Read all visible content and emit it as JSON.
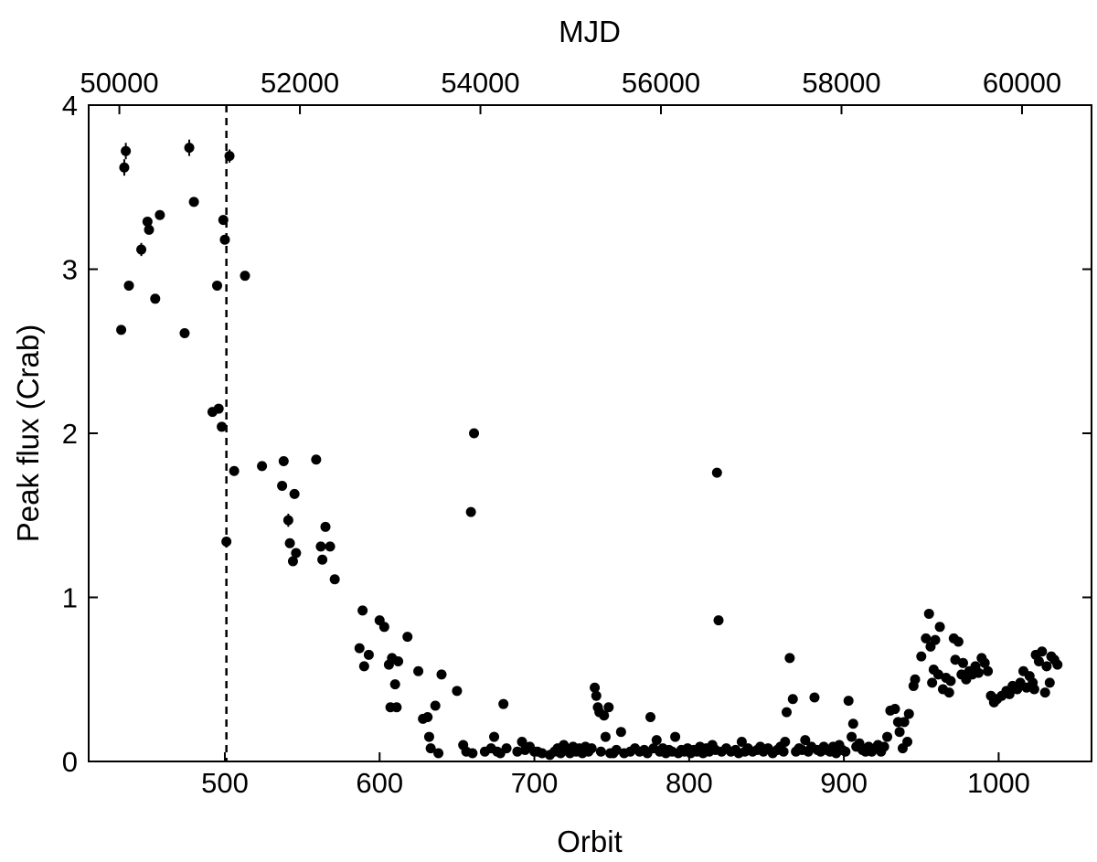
{
  "chart_data": {
    "type": "scatter",
    "title": "",
    "xlabel": "Orbit",
    "ylabel": "Peak flux (Crab)",
    "x2label": "MJD",
    "xlim": [
      412,
      1060
    ],
    "ylim": [
      0,
      4
    ],
    "x2lim": [
      49660,
      60770
    ],
    "xticks": [
      500,
      600,
      700,
      800,
      900,
      1000
    ],
    "yticks": [
      0,
      1,
      2,
      3,
      4
    ],
    "x2ticks": [
      50000,
      52000,
      54000,
      56000,
      58000,
      60000
    ],
    "reference_line": {
      "axis": "x",
      "value": 501,
      "style": "dashed"
    },
    "grid": false,
    "legend": "none",
    "series": [
      {
        "points": [
          [
            433,
            2.63
          ],
          [
            435,
            3.62
          ],
          [
            436,
            3.72
          ],
          [
            438,
            2.9
          ],
          [
            446,
            3.12
          ],
          [
            450,
            3.29
          ],
          [
            451,
            3.24
          ],
          [
            455,
            2.82
          ],
          [
            458,
            3.33
          ],
          [
            474,
            2.61
          ],
          [
            477,
            3.74
          ],
          [
            480,
            3.41
          ],
          [
            492,
            2.13
          ],
          [
            495,
            2.9
          ],
          [
            496,
            2.15
          ],
          [
            498,
            2.04
          ],
          [
            499,
            3.3
          ],
          [
            500,
            3.18
          ],
          [
            501,
            1.34
          ],
          [
            503,
            3.69
          ],
          [
            506,
            1.77
          ],
          [
            513,
            2.96
          ],
          [
            524,
            1.8
          ],
          [
            537,
            1.68
          ],
          [
            538,
            1.83
          ],
          [
            541,
            1.47
          ],
          [
            542,
            1.33
          ],
          [
            544,
            1.22
          ],
          [
            545,
            1.63
          ],
          [
            546,
            1.27
          ],
          [
            559,
            1.84
          ],
          [
            562,
            1.31
          ],
          [
            563,
            1.23
          ],
          [
            565,
            1.43
          ],
          [
            568,
            1.31
          ],
          [
            571,
            1.11
          ],
          [
            587,
            0.69
          ],
          [
            589,
            0.92
          ],
          [
            590,
            0.58
          ],
          [
            593,
            0.65
          ],
          [
            600,
            0.86
          ],
          [
            603,
            0.82
          ],
          [
            606,
            0.59
          ],
          [
            607,
            0.33
          ],
          [
            608,
            0.63
          ],
          [
            610,
            0.47
          ],
          [
            611,
            0.33
          ],
          [
            612,
            0.61
          ],
          [
            618,
            0.76
          ],
          [
            625,
            0.55
          ],
          [
            628,
            0.26
          ],
          [
            631,
            0.27
          ],
          [
            632,
            0.15
          ],
          [
            633,
            0.08
          ],
          [
            636,
            0.34
          ],
          [
            638,
            0.05
          ],
          [
            640,
            0.53
          ],
          [
            650,
            0.43
          ],
          [
            654,
            0.1
          ],
          [
            656,
            0.06
          ],
          [
            659,
            1.52
          ],
          [
            660,
            0.05
          ],
          [
            661,
            2.0
          ],
          [
            668,
            0.06
          ],
          [
            672,
            0.08
          ],
          [
            674,
            0.15
          ],
          [
            676,
            0.06
          ],
          [
            678,
            0.05
          ],
          [
            680,
            0.35
          ],
          [
            682,
            0.08
          ],
          [
            689,
            0.06
          ],
          [
            692,
            0.12
          ],
          [
            694,
            0.07
          ],
          [
            697,
            0.09
          ],
          [
            700,
            0.06
          ],
          [
            702,
            0.06
          ],
          [
            705,
            0.05
          ],
          [
            710,
            0.04
          ],
          [
            713,
            0.06
          ],
          [
            715,
            0.08
          ],
          [
            717,
            0.05
          ],
          [
            719,
            0.1
          ],
          [
            721,
            0.07
          ],
          [
            723,
            0.05
          ],
          [
            725,
            0.09
          ],
          [
            727,
            0.06
          ],
          [
            729,
            0.08
          ],
          [
            731,
            0.05
          ],
          [
            733,
            0.09
          ],
          [
            735,
            0.06
          ],
          [
            737,
            0.08
          ],
          [
            739,
            0.45
          ],
          [
            740,
            0.4
          ],
          [
            741,
            0.33
          ],
          [
            742,
            0.3
          ],
          [
            743,
            0.06
          ],
          [
            745,
            0.28
          ],
          [
            746,
            0.15
          ],
          [
            748,
            0.33
          ],
          [
            749,
            0.05
          ],
          [
            751,
            0.05
          ],
          [
            753,
            0.07
          ],
          [
            756,
            0.18
          ],
          [
            758,
            0.05
          ],
          [
            762,
            0.06
          ],
          [
            765,
            0.08
          ],
          [
            768,
            0.06
          ],
          [
            771,
            0.07
          ],
          [
            773,
            0.05
          ],
          [
            775,
            0.27
          ],
          [
            777,
            0.08
          ],
          [
            779,
            0.13
          ],
          [
            781,
            0.06
          ],
          [
            783,
            0.08
          ],
          [
            785,
            0.05
          ],
          [
            787,
            0.07
          ],
          [
            789,
            0.06
          ],
          [
            791,
            0.15
          ],
          [
            793,
            0.05
          ],
          [
            795,
            0.07
          ],
          [
            797,
            0.06
          ],
          [
            799,
            0.08
          ],
          [
            801,
            0.05
          ],
          [
            803,
            0.07
          ],
          [
            805,
            0.06
          ],
          [
            807,
            0.09
          ],
          [
            809,
            0.05
          ],
          [
            811,
            0.08
          ],
          [
            813,
            0.06
          ],
          [
            815,
            0.1
          ],
          [
            817,
            0.07
          ],
          [
            818,
            1.76
          ],
          [
            819,
            0.86
          ],
          [
            821,
            0.06
          ],
          [
            824,
            0.08
          ],
          [
            827,
            0.06
          ],
          [
            830,
            0.07
          ],
          [
            832,
            0.05
          ],
          [
            834,
            0.12
          ],
          [
            836,
            0.06
          ],
          [
            838,
            0.08
          ],
          [
            841,
            0.06
          ],
          [
            844,
            0.07
          ],
          [
            846,
            0.09
          ],
          [
            848,
            0.06
          ],
          [
            851,
            0.08
          ],
          [
            854,
            0.05
          ],
          [
            857,
            0.07
          ],
          [
            859,
            0.09
          ],
          [
            861,
            0.06
          ],
          [
            862,
            0.12
          ],
          [
            863,
            0.3
          ],
          [
            865,
            0.63
          ],
          [
            867,
            0.38
          ],
          [
            869,
            0.06
          ],
          [
            871,
            0.08
          ],
          [
            873,
            0.07
          ],
          [
            875,
            0.13
          ],
          [
            877,
            0.06
          ],
          [
            879,
            0.09
          ],
          [
            881,
            0.39
          ],
          [
            883,
            0.07
          ],
          [
            885,
            0.06
          ],
          [
            887,
            0.09
          ],
          [
            889,
            0.07
          ],
          [
            891,
            0.06
          ],
          [
            893,
            0.09
          ],
          [
            895,
            0.05
          ],
          [
            897,
            0.1
          ],
          [
            899,
            0.07
          ],
          [
            901,
            0.06
          ],
          [
            903,
            0.37
          ],
          [
            905,
            0.15
          ],
          [
            906,
            0.23
          ],
          [
            908,
            0.09
          ],
          [
            910,
            0.11
          ],
          [
            912,
            0.07
          ],
          [
            914,
            0.06
          ],
          [
            916,
            0.09
          ],
          [
            918,
            0.06
          ],
          [
            920,
            0.08
          ],
          [
            922,
            0.1
          ],
          [
            924,
            0.06
          ],
          [
            926,
            0.09
          ],
          [
            928,
            0.15
          ],
          [
            930,
            0.31
          ],
          [
            933,
            0.32
          ],
          [
            935,
            0.24
          ],
          [
            936,
            0.18
          ],
          [
            938,
            0.08
          ],
          [
            939,
            0.24
          ],
          [
            941,
            0.12
          ],
          [
            942,
            0.29
          ],
          [
            945,
            0.46
          ],
          [
            946,
            0.5
          ],
          [
            950,
            0.64
          ],
          [
            953,
            0.75
          ],
          [
            955,
            0.9
          ],
          [
            956,
            0.7
          ],
          [
            957,
            0.48
          ],
          [
            958,
            0.56
          ],
          [
            959,
            0.74
          ],
          [
            961,
            0.53
          ],
          [
            962,
            0.82
          ],
          [
            964,
            0.44
          ],
          [
            966,
            0.51
          ],
          [
            968,
            0.42
          ],
          [
            969,
            0.49
          ],
          [
            971,
            0.75
          ],
          [
            972,
            0.62
          ],
          [
            974,
            0.73
          ],
          [
            976,
            0.53
          ],
          [
            977,
            0.6
          ],
          [
            979,
            0.5
          ],
          [
            981,
            0.55
          ],
          [
            983,
            0.53
          ],
          [
            985,
            0.58
          ],
          [
            987,
            0.54
          ],
          [
            989,
            0.63
          ],
          [
            991,
            0.6
          ],
          [
            993,
            0.55
          ],
          [
            995,
            0.4
          ],
          [
            997,
            0.36
          ],
          [
            999,
            0.38
          ],
          [
            1002,
            0.4
          ],
          [
            1005,
            0.43
          ],
          [
            1007,
            0.41
          ],
          [
            1009,
            0.46
          ],
          [
            1012,
            0.44
          ],
          [
            1014,
            0.48
          ],
          [
            1016,
            0.55
          ],
          [
            1018,
            0.45
          ],
          [
            1020,
            0.52
          ],
          [
            1022,
            0.48
          ],
          [
            1023,
            0.44
          ],
          [
            1024,
            0.65
          ],
          [
            1026,
            0.61
          ],
          [
            1028,
            0.67
          ],
          [
            1030,
            0.42
          ],
          [
            1031,
            0.58
          ],
          [
            1033,
            0.48
          ],
          [
            1034,
            0.64
          ],
          [
            1036,
            0.62
          ],
          [
            1038,
            0.59
          ]
        ],
        "error_bars": [
          {
            "x": 436,
            "y": 3.72,
            "err": 0.05
          },
          {
            "x": 435,
            "y": 3.62,
            "err": 0.05
          },
          {
            "x": 477,
            "y": 3.74,
            "err": 0.05
          },
          {
            "x": 446,
            "y": 3.12,
            "err": 0.04
          },
          {
            "x": 503,
            "y": 3.69,
            "err": 0.04
          },
          {
            "x": 541,
            "y": 1.47,
            "err": 0.04
          },
          {
            "x": 674,
            "y": 0.15,
            "err": 0.03
          }
        ]
      }
    ]
  }
}
